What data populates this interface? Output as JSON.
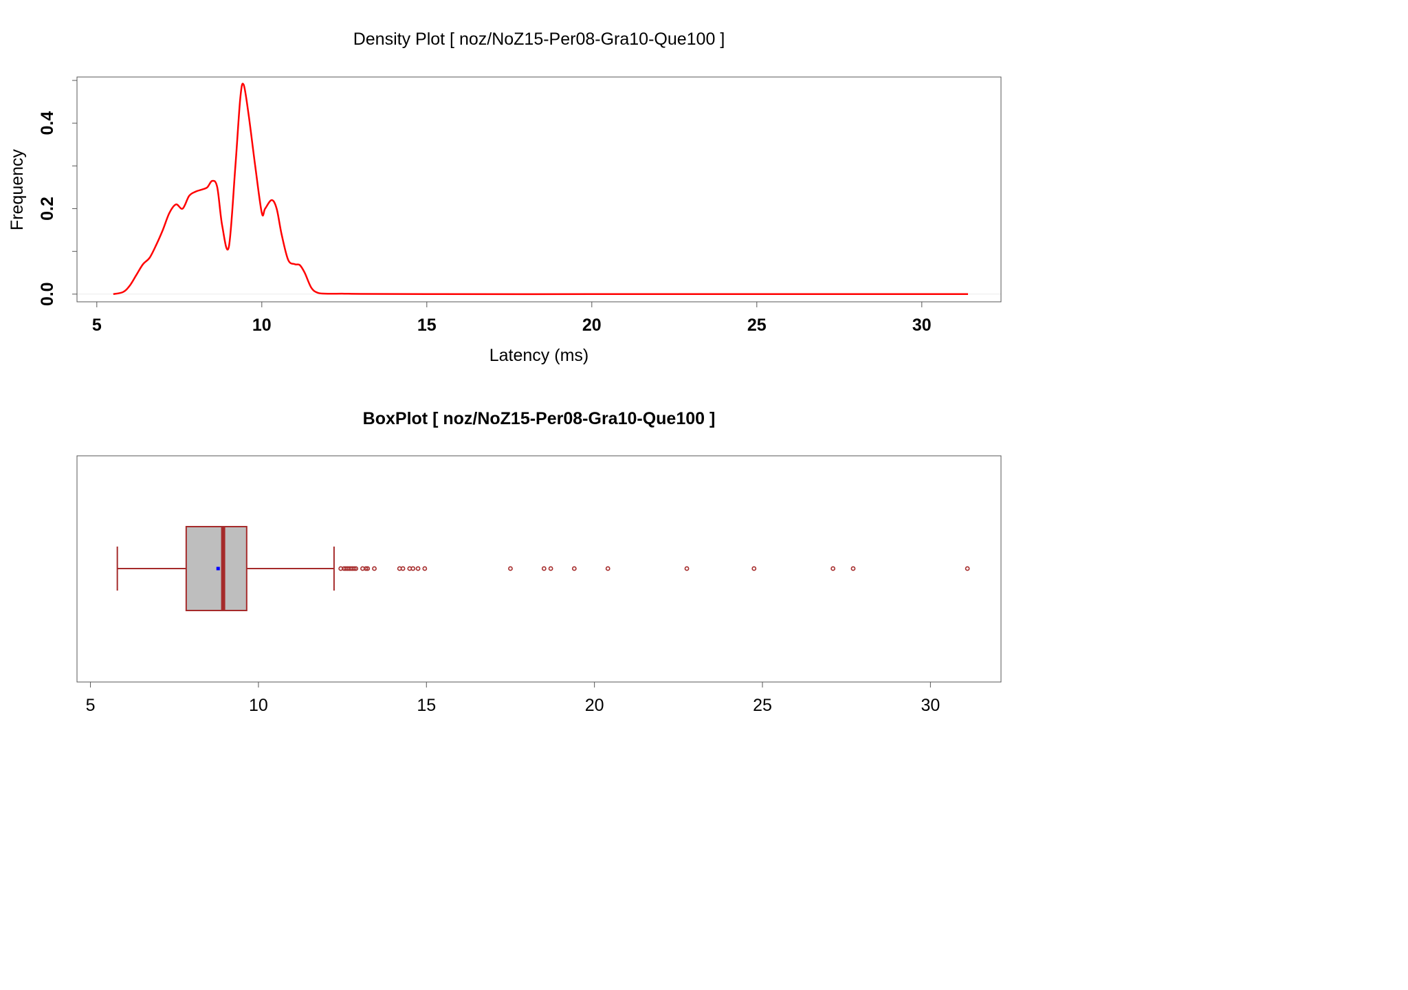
{
  "colors": {
    "density_line": "#ff0000",
    "box_border": "#a52a2a",
    "box_fill": "#bebebe",
    "median": "#a52a2a",
    "mean_marker": "#0000ff",
    "outlier": "#a52a2a",
    "frame": "#555555",
    "zero_line": "#ebebeb"
  },
  "chart_data": [
    {
      "type": "line",
      "title": "Density Plot [ noz/NoZ15-Per08-Gra10-Que100 ]",
      "xlabel": "Latency (ms)",
      "ylabel": "Frequency",
      "x_ticks": [
        5,
        10,
        15,
        20,
        25,
        30
      ],
      "y_ticks": [
        0.0,
        0.2,
        0.4
      ],
      "y_tick_labels": [
        "0.0",
        "0.2",
        "0.4"
      ],
      "xlim": [
        4.4,
        32.4
      ],
      "ylim": [
        -0.018,
        0.508
      ],
      "grid": false,
      "series": [
        {
          "x": [
            5.5,
            5.8,
            6.0,
            6.2,
            6.4,
            6.6,
            6.8,
            7.0,
            7.2,
            7.4,
            7.6,
            7.8,
            8.0,
            8.2,
            8.35,
            8.5,
            8.65,
            8.8,
            9.0,
            9.2,
            9.35,
            9.45,
            9.6,
            9.8,
            10.0,
            10.1,
            10.3,
            10.45,
            10.6,
            10.8,
            11.0,
            11.15,
            11.3,
            11.5,
            11.7,
            12.0,
            12.5,
            13.0,
            15.0,
            20.0,
            25.0,
            31.4
          ],
          "y": [
            0.0,
            0.005,
            0.02,
            0.045,
            0.07,
            0.085,
            0.115,
            0.15,
            0.19,
            0.21,
            0.2,
            0.23,
            0.24,
            0.245,
            0.25,
            0.265,
            0.25,
            0.16,
            0.11,
            0.3,
            0.46,
            0.49,
            0.42,
            0.3,
            0.19,
            0.2,
            0.22,
            0.2,
            0.14,
            0.08,
            0.07,
            0.068,
            0.05,
            0.015,
            0.003,
            0.001,
            0.001,
            0.0005,
            0.0,
            0.0,
            0.0,
            0.0
          ]
        }
      ]
    },
    {
      "type": "box",
      "title": "BoxPlot [ noz/NoZ15-Per08-Gra10-Que100 ]",
      "x_ticks": [
        5,
        10,
        15,
        20,
        25,
        30
      ],
      "xlim": [
        4.6,
        32.1
      ],
      "whisker_low": 5.8,
      "q1": 7.85,
      "median": 8.95,
      "q3": 9.65,
      "whisker_high": 12.25,
      "mean": 8.8,
      "outliers": [
        12.45,
        12.55,
        12.6,
        12.65,
        12.7,
        12.75,
        12.8,
        12.85,
        12.9,
        13.1,
        13.2,
        13.25,
        13.45,
        14.2,
        14.3,
        14.5,
        14.6,
        14.75,
        14.95,
        17.5,
        18.5,
        18.7,
        19.4,
        20.4,
        22.75,
        24.75,
        27.1,
        27.7,
        31.1
      ]
    }
  ]
}
